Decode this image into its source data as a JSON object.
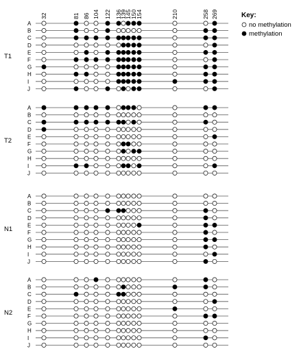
{
  "positions": [
    "32",
    "81",
    "86",
    "104",
    "122",
    "136",
    "139",
    "145",
    "150",
    "154",
    "210",
    "258",
    "269"
  ],
  "key": {
    "title": "Key:",
    "items": [
      {
        "name": "unmethylated",
        "label": "no methylation",
        "filled": false
      },
      {
        "name": "methylated",
        "label": "methylation",
        "filled": true
      }
    ]
  },
  "groups": [
    {
      "label": "T1",
      "rows": [
        {
          "label": "A",
          "pattern": "0100110111001"
        },
        {
          "label": "B",
          "pattern": "0100100000011"
        },
        {
          "label": "C",
          "pattern": "0111111111011"
        },
        {
          "label": "D",
          "pattern": "0000001111001"
        },
        {
          "label": "E",
          "pattern": "0010111111011"
        },
        {
          "label": "F",
          "pattern": "0111111111001"
        },
        {
          "label": "G",
          "pattern": "1000011111011"
        },
        {
          "label": "H",
          "pattern": "0110011111011"
        },
        {
          "label": "I",
          "pattern": "0000011111111"
        },
        {
          "label": "J",
          "pattern": "0100101011001"
        }
      ]
    },
    {
      "label": "T2",
      "rows": [
        {
          "label": "A",
          "pattern": "1111101110011"
        },
        {
          "label": "B",
          "pattern": "0000000000000"
        },
        {
          "label": "C",
          "pattern": "1111111010010"
        },
        {
          "label": "D",
          "pattern": "1000000000000"
        },
        {
          "label": "E",
          "pattern": "0000000000001"
        },
        {
          "label": "F",
          "pattern": "0000001100000"
        },
        {
          "label": "G",
          "pattern": "0000001011000"
        },
        {
          "label": "H",
          "pattern": "0000000000000"
        },
        {
          "label": "I",
          "pattern": "0110001101001"
        },
        {
          "label": "J",
          "pattern": "0000000000000"
        }
      ]
    },
    {
      "label": "N1",
      "rows": [
        {
          "label": "A",
          "pattern": "0000000000000"
        },
        {
          "label": "B",
          "pattern": "0000000000000"
        },
        {
          "label": "C",
          "pattern": "0000111000010"
        },
        {
          "label": "D",
          "pattern": "0000000000010"
        },
        {
          "label": "E",
          "pattern": "0000000001011"
        },
        {
          "label": "F",
          "pattern": "0000000000010"
        },
        {
          "label": "G",
          "pattern": "0000000000011"
        },
        {
          "label": "H",
          "pattern": "0000000000010"
        },
        {
          "label": "I",
          "pattern": "0000000000001"
        },
        {
          "label": "J",
          "pattern": "0000000000010"
        }
      ]
    },
    {
      "label": "N2",
      "rows": [
        {
          "label": "A",
          "pattern": "0001000000010"
        },
        {
          "label": "B",
          "pattern": "0000001000110"
        },
        {
          "label": "C",
          "pattern": "0100011000000"
        },
        {
          "label": "D",
          "pattern": "0000000000001"
        },
        {
          "label": "E",
          "pattern": "0000000000100"
        },
        {
          "label": "F",
          "pattern": "0000000000011"
        },
        {
          "label": "G",
          "pattern": "0000000000000"
        },
        {
          "label": "H",
          "pattern": "0000000000000"
        },
        {
          "label": "I",
          "pattern": "0000000000010"
        },
        {
          "label": "J",
          "pattern": "0000000000000"
        }
      ]
    }
  ]
}
